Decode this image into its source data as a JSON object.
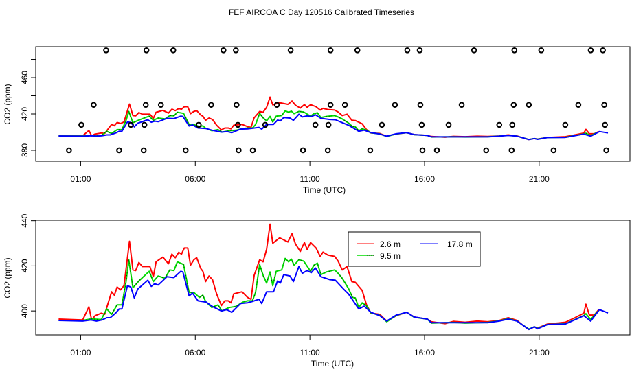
{
  "chart_data": [
    {
      "type": "line",
      "title": "FEF AIRCOA C  Day 120516  Calibrated Timeseries",
      "xlabel": "Time (UTC)",
      "ylabel": "CO2 (ppm)",
      "xlim": [
        -0.96,
        24.96
      ],
      "ylim": [
        367.9,
        494
      ],
      "x_ticks": [
        1,
        6,
        11,
        16,
        21
      ],
      "x_tick_labels": [
        "01:00",
        "06:00",
        "11:00",
        "16:00",
        "21:00"
      ],
      "y_ticks": [
        380,
        400,
        420,
        440,
        460,
        480
      ],
      "y_tick_labels": [
        "380",
        "",
        "420",
        "",
        "460",
        ""
      ],
      "flag_markers": [
        {
          "value": 490,
          "hours": [
            2.11,
            3.87,
            5.04,
            7.23,
            7.77,
            10.16,
            11.9,
            13.07,
            15.25,
            15.79,
            18.16,
            19.92,
            21.09,
            23.25,
            23.78
          ]
        },
        {
          "value": 430,
          "hours": [
            1.57,
            3.84,
            4.5,
            6.69,
            7.8,
            9.56,
            11.9,
            12.53,
            14.71,
            15.82,
            17.62,
            19.89,
            20.55,
            22.71,
            23.84
          ]
        },
        {
          "value": 408,
          "hours": [
            1.03,
            3.19,
            3.78,
            6.15,
            7.86,
            9.05,
            11.24,
            11.81,
            14.14,
            15.88,
            17.05,
            19.26,
            19.83,
            22.14,
            23.87
          ]
        },
        {
          "value": 380,
          "hours": [
            0.49,
            2.68,
            3.75,
            5.58,
            7.89,
            8.51,
            10.7,
            11.78,
            13.63,
            15.91,
            16.54,
            18.69,
            19.8,
            21.63,
            23.93
          ]
        }
      ]
    },
    {
      "type": "line",
      "xlabel": "Time (UTC)",
      "ylabel": "CO2 (ppm)",
      "xlim": [
        -0.96,
        24.96
      ],
      "ylim": [
        389.4,
        440.2
      ],
      "x_ticks": [
        1,
        6,
        11,
        16,
        21
      ],
      "x_tick_labels": [
        "01:00",
        "06:00",
        "11:00",
        "16:00",
        "21:00"
      ],
      "y_ticks": [
        400,
        420,
        440
      ],
      "y_tick_labels": [
        "400",
        "420",
        "440"
      ],
      "legend": {
        "placement": "top-right-center",
        "entries": [
          "2.6 m",
          "9.5 m",
          "17.8 m"
        ]
      }
    }
  ],
  "series": [
    {
      "name": "2.6 m",
      "color": "#ff0000",
      "points": [
        [
          0.04,
          396.4
        ],
        [
          1.09,
          396
        ],
        [
          1.36,
          401.8
        ],
        [
          1.48,
          396
        ],
        [
          1.63,
          397.9
        ],
        [
          1.9,
          399
        ],
        [
          2.05,
          398.5
        ],
        [
          2.35,
          408.5
        ],
        [
          2.47,
          407
        ],
        [
          2.59,
          410.6
        ],
        [
          2.74,
          409.4
        ],
        [
          2.89,
          411.2
        ],
        [
          3.13,
          430.9
        ],
        [
          3.28,
          418.2
        ],
        [
          3.4,
          417.9
        ],
        [
          3.54,
          421.5
        ],
        [
          3.69,
          419.7
        ],
        [
          4.02,
          419.7
        ],
        [
          4.17,
          415.2
        ],
        [
          4.29,
          421.8
        ],
        [
          4.59,
          423.9
        ],
        [
          4.83,
          420.9
        ],
        [
          4.98,
          425.2
        ],
        [
          5.13,
          423.6
        ],
        [
          5.28,
          426
        ],
        [
          5.4,
          425.2
        ],
        [
          5.52,
          427.9
        ],
        [
          5.67,
          427.9
        ],
        [
          5.79,
          420.3
        ],
        [
          5.94,
          422.7
        ],
        [
          6.06,
          423.6
        ],
        [
          6.24,
          418.8
        ],
        [
          6.33,
          417.6
        ],
        [
          6.45,
          413
        ],
        [
          6.6,
          415.5
        ],
        [
          6.75,
          413.9
        ],
        [
          6.93,
          407.6
        ],
        [
          7.14,
          402.4
        ],
        [
          7.29,
          404.5
        ],
        [
          7.44,
          404.5
        ],
        [
          7.56,
          403.6
        ],
        [
          7.68,
          407.6
        ],
        [
          8.04,
          408.5
        ],
        [
          8.28,
          406
        ],
        [
          8.43,
          405.2
        ],
        [
          8.57,
          415.8
        ],
        [
          8.81,
          422.7
        ],
        [
          8.96,
          421.8
        ],
        [
          9.11,
          427.3
        ],
        [
          9.26,
          438.5
        ],
        [
          9.38,
          430
        ],
        [
          9.68,
          432.4
        ],
        [
          10.04,
          430.6
        ],
        [
          10.22,
          434.2
        ],
        [
          10.37,
          429.7
        ],
        [
          10.58,
          426.4
        ],
        [
          10.76,
          430.3
        ],
        [
          10.88,
          427.3
        ],
        [
          11.03,
          430.3
        ],
        [
          11.27,
          427.9
        ],
        [
          11.45,
          424.2
        ],
        [
          11.57,
          426.1
        ],
        [
          11.78,
          424.8
        ],
        [
          12.08,
          424.2
        ],
        [
          12.23,
          422.1
        ],
        [
          12.41,
          418.2
        ],
        [
          12.62,
          419.7
        ],
        [
          12.83,
          413
        ],
        [
          12.98,
          412.7
        ],
        [
          13.28,
          409.1
        ],
        [
          13.46,
          403
        ],
        [
          13.66,
          399.1
        ],
        [
          14.05,
          398.5
        ],
        [
          14.35,
          395.5
        ],
        [
          14.77,
          397.9
        ],
        [
          15.22,
          399.4
        ],
        [
          15.55,
          397.3
        ],
        [
          16.12,
          396.4
        ],
        [
          16.3,
          395.2
        ],
        [
          16.9,
          394.4
        ],
        [
          17.26,
          395.4
        ],
        [
          17.77,
          395
        ],
        [
          18.3,
          395.5
        ],
        [
          18.75,
          395.2
        ],
        [
          19.26,
          395.8
        ],
        [
          19.65,
          397
        ],
        [
          20.04,
          395.8
        ],
        [
          20.25,
          394
        ],
        [
          20.55,
          391.8
        ],
        [
          20.79,
          393
        ],
        [
          20.93,
          392.4
        ],
        [
          21.36,
          394.2
        ],
        [
          22.14,
          395
        ],
        [
          22.56,
          397
        ],
        [
          22.95,
          399
        ],
        [
          23.04,
          403
        ],
        [
          23.19,
          398.2
        ],
        [
          23.4,
          398.2
        ],
        [
          23.6,
          400.6
        ]
      ]
    },
    {
      "name": "9.5 m",
      "color": "#00dd00",
      "points": [
        [
          0.04,
          395.8
        ],
        [
          1.09,
          395.8
        ],
        [
          1.45,
          396.5
        ],
        [
          1.9,
          396.2
        ],
        [
          2.14,
          400.9
        ],
        [
          2.35,
          398.5
        ],
        [
          2.59,
          402.7
        ],
        [
          2.8,
          402.7
        ],
        [
          2.98,
          413
        ],
        [
          3.1,
          422.7
        ],
        [
          3.28,
          410.3
        ],
        [
          3.54,
          413.3
        ],
        [
          3.99,
          417.6
        ],
        [
          4.17,
          413
        ],
        [
          4.38,
          415.5
        ],
        [
          4.68,
          414.5
        ],
        [
          4.89,
          418.2
        ],
        [
          5.07,
          417.9
        ],
        [
          5.22,
          421.8
        ],
        [
          5.49,
          420.6
        ],
        [
          5.73,
          408.2
        ],
        [
          5.94,
          408.2
        ],
        [
          6.18,
          406
        ],
        [
          6.33,
          407
        ],
        [
          6.45,
          404.2
        ],
        [
          6.72,
          401.5
        ],
        [
          6.99,
          402.7
        ],
        [
          7.17,
          400
        ],
        [
          7.47,
          401.5
        ],
        [
          7.77,
          402
        ],
        [
          8.07,
          403.9
        ],
        [
          8.28,
          404.5
        ],
        [
          8.49,
          404.5
        ],
        [
          8.63,
          408.2
        ],
        [
          8.81,
          420.6
        ],
        [
          8.96,
          415.8
        ],
        [
          9.11,
          412.4
        ],
        [
          9.26,
          417.3
        ],
        [
          9.38,
          411.2
        ],
        [
          9.53,
          417.6
        ],
        [
          9.77,
          418.2
        ],
        [
          9.92,
          423.3
        ],
        [
          10.07,
          421.8
        ],
        [
          10.19,
          423
        ],
        [
          10.31,
          420.3
        ],
        [
          10.52,
          422.7
        ],
        [
          10.73,
          422.1
        ],
        [
          11.03,
          417.6
        ],
        [
          11.18,
          420.3
        ],
        [
          11.33,
          421.2
        ],
        [
          11.48,
          416.1
        ],
        [
          11.72,
          417.3
        ],
        [
          12.08,
          418.2
        ],
        [
          12.23,
          416.7
        ],
        [
          12.41,
          414.5
        ],
        [
          12.68,
          410
        ],
        [
          12.86,
          406
        ],
        [
          12.98,
          405.8
        ],
        [
          13.13,
          401.5
        ],
        [
          13.28,
          403.6
        ],
        [
          13.46,
          402.4
        ],
        [
          13.66,
          399.2
        ],
        [
          14.05,
          398
        ],
        [
          14.35,
          395.2
        ],
        [
          14.77,
          398
        ],
        [
          15.22,
          399.4
        ],
        [
          15.55,
          397.2
        ],
        [
          16.12,
          396.4
        ],
        [
          16.3,
          394.6
        ],
        [
          17.26,
          394.9
        ],
        [
          17.77,
          394.6
        ],
        [
          18.75,
          394.9
        ],
        [
          19.26,
          395.6
        ],
        [
          19.65,
          396.6
        ],
        [
          20.04,
          395.5
        ],
        [
          20.25,
          394
        ],
        [
          20.55,
          392
        ],
        [
          20.79,
          393
        ],
        [
          20.93,
          392.3
        ],
        [
          21.36,
          394
        ],
        [
          22.14,
          394.3
        ],
        [
          22.56,
          396.2
        ],
        [
          22.95,
          398
        ],
        [
          23.04,
          398.8
        ],
        [
          23.25,
          396.2
        ],
        [
          23.55,
          399.8
        ]
      ]
    },
    {
      "name": "17.8 m",
      "color": "#0000ff",
      "points": [
        [
          0.04,
          395.8
        ],
        [
          1.09,
          395.5
        ],
        [
          1.45,
          396
        ],
        [
          1.69,
          395.5
        ],
        [
          1.93,
          396
        ],
        [
          2.14,
          397
        ],
        [
          2.29,
          397
        ],
        [
          2.53,
          399.1
        ],
        [
          2.68,
          400.9
        ],
        [
          2.8,
          400.9
        ],
        [
          3.04,
          411.2
        ],
        [
          3.19,
          410.6
        ],
        [
          3.34,
          405.8
        ],
        [
          3.49,
          409.7
        ],
        [
          3.93,
          413.6
        ],
        [
          4.08,
          410.9
        ],
        [
          4.23,
          412.1
        ],
        [
          4.38,
          411.5
        ],
        [
          4.77,
          415.2
        ],
        [
          5.07,
          414.8
        ],
        [
          5.37,
          417.6
        ],
        [
          5.46,
          417.3
        ],
        [
          5.73,
          406.7
        ],
        [
          5.88,
          407.9
        ],
        [
          6.12,
          404.5
        ],
        [
          6.48,
          403.9
        ],
        [
          6.72,
          402.1
        ],
        [
          7.14,
          400
        ],
        [
          7.38,
          400.6
        ],
        [
          7.59,
          399.4
        ],
        [
          7.98,
          403.3
        ],
        [
          8.28,
          403.6
        ],
        [
          8.49,
          404.2
        ],
        [
          8.78,
          405.2
        ],
        [
          8.9,
          403.3
        ],
        [
          9.11,
          408.5
        ],
        [
          9.41,
          408.5
        ],
        [
          9.59,
          413.3
        ],
        [
          9.71,
          412.4
        ],
        [
          9.86,
          416.1
        ],
        [
          10.13,
          415.5
        ],
        [
          10.28,
          413
        ],
        [
          10.52,
          419.7
        ],
        [
          10.67,
          416.7
        ],
        [
          10.88,
          417.9
        ],
        [
          11.06,
          417
        ],
        [
          11.24,
          419.1
        ],
        [
          11.48,
          415.2
        ],
        [
          11.87,
          413.9
        ],
        [
          12.11,
          413.6
        ],
        [
          12.47,
          409.7
        ],
        [
          12.68,
          407.6
        ],
        [
          13.13,
          400.9
        ],
        [
          13.37,
          402.1
        ],
        [
          13.66,
          399.4
        ],
        [
          14.05,
          397.9
        ],
        [
          14.35,
          395.5
        ],
        [
          14.77,
          398.2
        ],
        [
          15.22,
          399.4
        ],
        [
          15.55,
          397.3
        ],
        [
          16.12,
          396.4
        ],
        [
          16.3,
          394.8
        ],
        [
          17.26,
          394.8
        ],
        [
          17.77,
          394.8
        ],
        [
          18.75,
          394.8
        ],
        [
          19.26,
          395.5
        ],
        [
          19.65,
          396.4
        ],
        [
          20.04,
          395.5
        ],
        [
          20.25,
          394
        ],
        [
          20.55,
          391.8
        ],
        [
          20.79,
          393
        ],
        [
          20.93,
          392.1
        ],
        [
          21.36,
          394
        ],
        [
          22.14,
          394.2
        ],
        [
          22.56,
          396.1
        ],
        [
          22.95,
          397.9
        ],
        [
          23.25,
          395.5
        ],
        [
          23.63,
          400.6
        ],
        [
          24.0,
          399.1
        ]
      ]
    }
  ]
}
